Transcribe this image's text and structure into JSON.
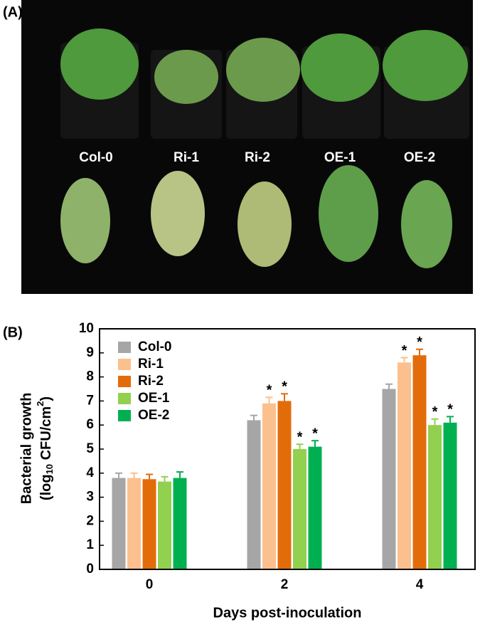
{
  "photo": {
    "label": "(A)",
    "plants": [
      "Col-0",
      "Ri-1",
      "Ri-2",
      "OE-1",
      "OE-2"
    ]
  },
  "chart_data": {
    "type": "bar",
    "label": "(B)",
    "y_label": [
      "Bacterial growth",
      [
        "(log",
        "10",
        " CFU/cm",
        "2",
        ")"
      ]
    ],
    "x_label": "Days post-inoculation",
    "categories": [
      "0",
      "2",
      "4"
    ],
    "ylim": [
      0,
      10
    ],
    "yticks": [
      0,
      1,
      2,
      3,
      4,
      5,
      6,
      7,
      8,
      9,
      10
    ],
    "legend": "top-left",
    "series": [
      {
        "name": "Col-0",
        "color": "#a6a6a6",
        "values": [
          3.8,
          6.2,
          7.5
        ],
        "errors": [
          0.2,
          0.2,
          0.2
        ],
        "marks": [
          null,
          null,
          null
        ]
      },
      {
        "name": "Ri-1",
        "color": "#fbc08e",
        "values": [
          3.8,
          6.9,
          8.6
        ],
        "errors": [
          0.2,
          0.25,
          0.2
        ],
        "marks": [
          null,
          "*",
          "*"
        ]
      },
      {
        "name": "Ri-2",
        "color": "#e36c0a",
        "values": [
          3.75,
          7.0,
          8.9
        ],
        "errors": [
          0.2,
          0.3,
          0.25
        ],
        "marks": [
          null,
          "*",
          "*"
        ]
      },
      {
        "name": "OE-1",
        "color": "#92d050",
        "values": [
          3.65,
          5.0,
          6.0
        ],
        "errors": [
          0.2,
          0.2,
          0.25
        ],
        "marks": [
          null,
          "*",
          "*"
        ]
      },
      {
        "name": "OE-2",
        "color": "#00b050",
        "values": [
          3.8,
          5.1,
          6.1
        ],
        "errors": [
          0.25,
          0.25,
          0.25
        ],
        "marks": [
          null,
          "*",
          "*"
        ]
      }
    ]
  }
}
